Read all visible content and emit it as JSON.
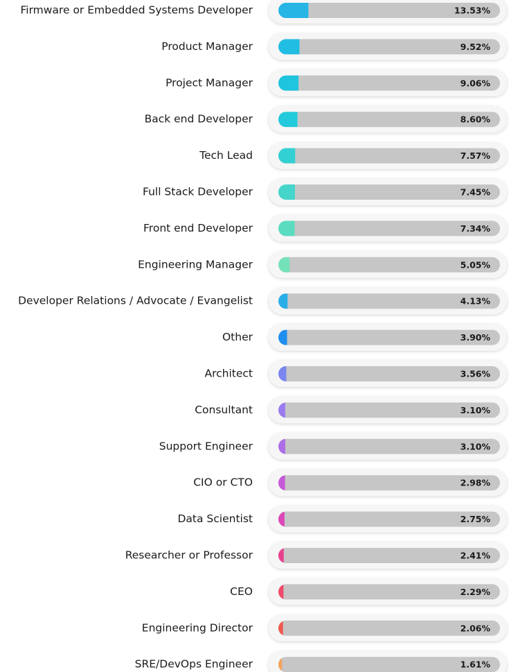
{
  "chart_data": {
    "type": "bar",
    "orientation": "horizontal",
    "categories": [
      "Firmware or Embedded Systems Developer",
      "Product Manager",
      "Project Manager",
      "Back end Developer",
      "Tech Lead",
      "Full Stack Developer",
      "Front end Developer",
      "Engineering Manager",
      "Developer Relations / Advocate / Evangelist",
      "Other",
      "Architect",
      "Consultant",
      "Support Engineer",
      "CIO or CTO",
      "Data Scientist",
      "Researcher or Professor",
      "CEO",
      "Engineering Director",
      "SRE/DevOps Engineer"
    ],
    "values": [
      13.53,
      9.52,
      9.06,
      8.6,
      7.57,
      7.45,
      7.34,
      5.05,
      4.13,
      3.9,
      3.56,
      3.1,
      3.1,
      2.98,
      2.75,
      2.41,
      2.29,
      2.06,
      1.61
    ],
    "value_labels": [
      "13.53%",
      "9.52%",
      "9.06%",
      "8.60%",
      "7.57%",
      "7.45%",
      "7.34%",
      "5.05%",
      "4.13%",
      "3.90%",
      "3.56%",
      "3.10%",
      "3.10%",
      "2.98%",
      "2.75%",
      "2.41%",
      "2.29%",
      "2.06%",
      "1.61%"
    ],
    "colors": [
      "#27b5e6",
      "#22bde3",
      "#1fc4df",
      "#22cadb",
      "#33d0d3",
      "#45d5cb",
      "#5bdcc0",
      "#74e2b8",
      "#2aaee8",
      "#1f8ff0",
      "#7b86f0",
      "#9a7cf0",
      "#ad6ee8",
      "#c55ad8",
      "#dc48b8",
      "#e8408f",
      "#ef4a6a",
      "#f0584f",
      "#f2a45c"
    ],
    "xlim": [
      0,
      100
    ]
  }
}
